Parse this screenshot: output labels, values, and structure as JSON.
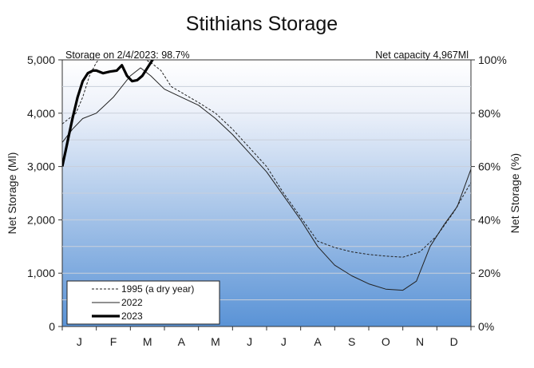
{
  "chart_data": {
    "type": "line",
    "title": "Stithians Storage",
    "ylabel": "Net Storage (Ml)",
    "y2label": "Net Storage (%)",
    "ylim": [
      0,
      5000
    ],
    "y2lim": [
      0,
      100
    ],
    "yticks": [
      "0",
      "1,000",
      "2,000",
      "3,000",
      "4,000",
      "5,000"
    ],
    "y2ticks": [
      "0%",
      "20%",
      "40%",
      "60%",
      "80%",
      "100%"
    ],
    "xlim": [
      0,
      12
    ],
    "months": [
      "J",
      "F",
      "M",
      "A",
      "M",
      "J",
      "J",
      "A",
      "S",
      "O",
      "N",
      "D"
    ],
    "annotation_left": "Storage on 2/4/2023: 98.7%",
    "annotation_right": "Net capacity  4,967Ml",
    "grid": true,
    "legend_position": "bottom-left",
    "series": [
      {
        "name": "1995 (a dry year)",
        "style": "dashed",
        "color": "#222222",
        "points": [
          [
            0,
            3800
          ],
          [
            0.2,
            3900
          ],
          [
            0.4,
            4000
          ],
          [
            0.6,
            4300
          ],
          [
            0.8,
            4700
          ],
          [
            1.0,
            4950
          ],
          [
            1.2,
            5100
          ],
          [
            2.0,
            5100
          ],
          [
            2.3,
            5050
          ],
          [
            2.6,
            4950
          ],
          [
            2.9,
            4800
          ],
          [
            3.2,
            4500
          ],
          [
            3.6,
            4350
          ],
          [
            4.0,
            4200
          ],
          [
            4.5,
            4000
          ],
          [
            5.0,
            3700
          ],
          [
            5.5,
            3350
          ],
          [
            6.0,
            3000
          ],
          [
            6.5,
            2500
          ],
          [
            7.0,
            2050
          ],
          [
            7.5,
            1600
          ],
          [
            8.0,
            1480
          ],
          [
            8.5,
            1400
          ],
          [
            9.0,
            1350
          ],
          [
            9.5,
            1320
          ],
          [
            10.0,
            1300
          ],
          [
            10.5,
            1400
          ],
          [
            11.0,
            1700
          ],
          [
            11.5,
            2150
          ],
          [
            12.0,
            2700
          ]
        ]
      },
      {
        "name": "2022",
        "style": "solid",
        "color": "#222222",
        "points": [
          [
            0,
            3450
          ],
          [
            0.3,
            3700
          ],
          [
            0.6,
            3900
          ],
          [
            1.0,
            4000
          ],
          [
            1.5,
            4300
          ],
          [
            2.0,
            4700
          ],
          [
            2.3,
            4850
          ],
          [
            2.6,
            4700
          ],
          [
            3.0,
            4450
          ],
          [
            3.5,
            4300
          ],
          [
            4.0,
            4150
          ],
          [
            4.5,
            3900
          ],
          [
            5.0,
            3600
          ],
          [
            5.5,
            3250
          ],
          [
            6.0,
            2900
          ],
          [
            6.5,
            2450
          ],
          [
            7.0,
            2000
          ],
          [
            7.5,
            1500
          ],
          [
            8.0,
            1150
          ],
          [
            8.5,
            950
          ],
          [
            9.0,
            800
          ],
          [
            9.5,
            700
          ],
          [
            10.0,
            680
          ],
          [
            10.4,
            850
          ],
          [
            10.8,
            1500
          ],
          [
            11.2,
            1900
          ],
          [
            11.6,
            2250
          ],
          [
            12.0,
            2950
          ]
        ]
      },
      {
        "name": "2023",
        "style": "bold",
        "color": "#000000",
        "points": [
          [
            0,
            3000
          ],
          [
            0.1,
            3300
          ],
          [
            0.2,
            3600
          ],
          [
            0.3,
            3900
          ],
          [
            0.45,
            4300
          ],
          [
            0.6,
            4600
          ],
          [
            0.75,
            4750
          ],
          [
            0.9,
            4800
          ],
          [
            1.0,
            4800
          ],
          [
            1.2,
            4750
          ],
          [
            1.4,
            4780
          ],
          [
            1.6,
            4800
          ],
          [
            1.75,
            4900
          ],
          [
            1.9,
            4700
          ],
          [
            2.05,
            4600
          ],
          [
            2.2,
            4620
          ],
          [
            2.35,
            4700
          ],
          [
            2.5,
            4850
          ],
          [
            2.65,
            5000
          ],
          [
            2.78,
            5120
          ],
          [
            2.9,
            5200
          ]
        ]
      }
    ]
  }
}
